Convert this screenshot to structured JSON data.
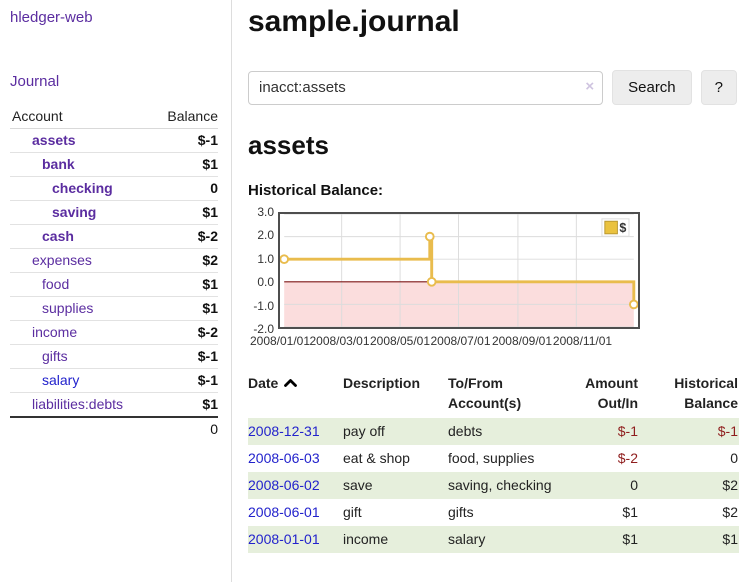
{
  "app": {
    "brand": "hledger-web"
  },
  "sidebar": {
    "nav_journal": "Journal",
    "accounts_table": {
      "headers": [
        "Account",
        "Balance"
      ],
      "rows": [
        {
          "account": "assets",
          "balance": "$-1"
        },
        {
          "account": "bank",
          "balance": "$1"
        },
        {
          "account": "checking",
          "balance": "0"
        },
        {
          "account": "saving",
          "balance": "$1"
        },
        {
          "account": "cash",
          "balance": "$-2"
        },
        {
          "account": "expenses",
          "balance": "$2"
        },
        {
          "account": "food",
          "balance": "$1"
        },
        {
          "account": "supplies",
          "balance": "$1"
        },
        {
          "account": "income",
          "balance": "$-2"
        },
        {
          "account": "gifts",
          "balance": "$-1"
        },
        {
          "account": "salary",
          "balance": "$-1"
        },
        {
          "account": "liabilities:debts",
          "balance": "$1"
        }
      ],
      "total": "0"
    }
  },
  "header": {
    "title": "sample.journal"
  },
  "search": {
    "value": "inacct:assets",
    "clear_icon": "×",
    "button_label": "Search",
    "help_label": "?"
  },
  "account_page": {
    "heading": "assets"
  },
  "icons": {
    "sort_date": "chevron-up",
    "clear_search": "x-clear"
  },
  "chart_data": {
    "type": "line",
    "title": "Historical Balance:",
    "step": "after",
    "series": [
      {
        "name": "$",
        "points": [
          {
            "date": "2008-01-01",
            "day": 0,
            "value": 1
          },
          {
            "date": "2008-06-01",
            "day": 152,
            "value": 2
          },
          {
            "date": "2008-06-03",
            "day": 154,
            "value": 0
          },
          {
            "date": "2008-12-31",
            "day": 365,
            "value": -1
          }
        ]
      }
    ],
    "x_ticks": [
      {
        "label": "2008/01/01",
        "day": 0
      },
      {
        "label": "2008/03/01",
        "day": 60
      },
      {
        "label": "2008/05/01",
        "day": 121
      },
      {
        "label": "2008/07/01",
        "day": 182
      },
      {
        "label": "2008/09/01",
        "day": 244
      },
      {
        "label": "2008/11/01",
        "day": 305
      }
    ],
    "y_ticks": [
      "3.0",
      "2.0",
      "1.0",
      "0.0",
      "-1.0",
      "-2.0"
    ],
    "ylim": [
      -2,
      3
    ],
    "xlim_days": [
      0,
      365
    ],
    "legend": {
      "label": "$",
      "position": "top-right"
    },
    "grid": true,
    "negative_region_shaded": true,
    "colors": {
      "line": "#e9bc4d",
      "marker_fill": "#ffffff",
      "negative_fill": "#fbdddd",
      "zero_line": "#7d1616"
    }
  },
  "register_table": {
    "headers": {
      "date": "Date",
      "description": "Description",
      "accounts": "To/From Account(s)",
      "amount": "Amount Out/In",
      "balance": "Historical Balance"
    },
    "rows": [
      {
        "date": "2008-12-31",
        "description": "pay off",
        "accounts": "debts",
        "amount": "$-1",
        "balance": "$-1"
      },
      {
        "date": "2008-06-03",
        "description": "eat & shop",
        "accounts": "food, supplies",
        "amount": "$-2",
        "balance": "0"
      },
      {
        "date": "2008-06-02",
        "description": "save",
        "accounts": "saving, checking",
        "amount": "0",
        "balance": "$2"
      },
      {
        "date": "2008-06-01",
        "description": "gift",
        "accounts": "gifts",
        "amount": "$1",
        "balance": "$2"
      },
      {
        "date": "2008-01-01",
        "description": "income",
        "accounts": "salary",
        "amount": "$1",
        "balance": "$1"
      }
    ]
  },
  "colors": {
    "link_purple": "#5b2da0",
    "link_blue": "#2222cc",
    "negative_strong": "#9d1a1a",
    "negative_muted": "#c17777",
    "row_green": "#e6efdc",
    "chart_gold": "#e9bc4d"
  }
}
